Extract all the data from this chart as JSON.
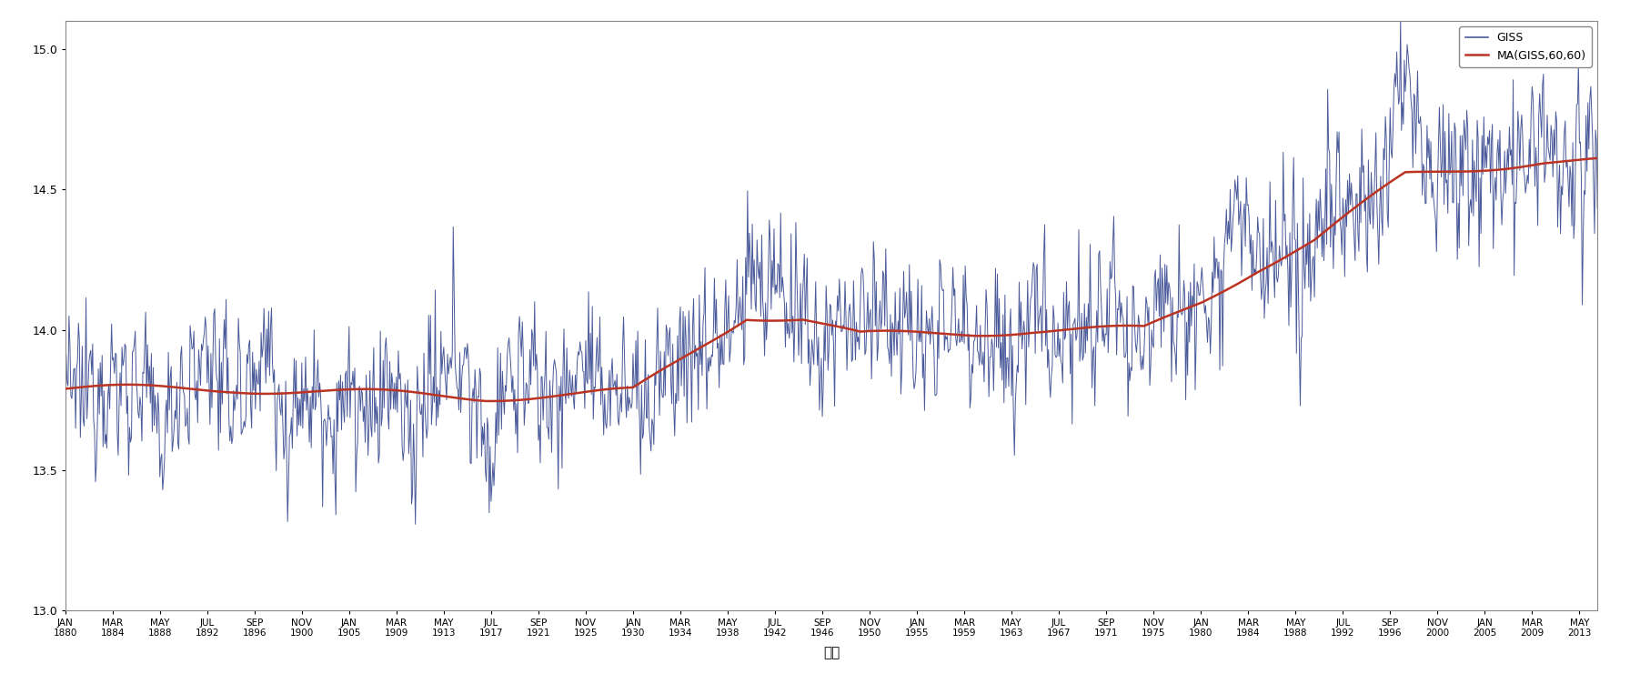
{
  "title": "",
  "xlabel": "날짜",
  "ylabel": "",
  "ylim": [
    13.0,
    15.1
  ],
  "xlim_start_year": 1880,
  "xlim_end_year": 2014,
  "line_color": "#4a5a9a",
  "ma_color": "#bb3322",
  "line_label": "GISS",
  "ma_label": "MA(GISS,60,60)",
  "background_color": "#ffffff",
  "yticks": [
    13.0,
    13.5,
    14.0,
    14.5,
    15.0
  ],
  "xtick_years": [
    1880,
    1884,
    1888,
    1892,
    1896,
    1900,
    1905,
    1909,
    1913,
    1917,
    1921,
    1925,
    1930,
    1934,
    1938,
    1942,
    1946,
    1950,
    1955,
    1959,
    1963,
    1967,
    1971,
    1975,
    1980,
    1984,
    1988,
    1992,
    1996,
    2000,
    2005,
    2009,
    2013
  ],
  "month_cycle": [
    "JAN",
    "MAR",
    "MAY",
    "JUL",
    "SEP",
    "NOV"
  ],
  "months_map": {
    "JAN": 0,
    "MAR": 2,
    "MAY": 4,
    "JUL": 6,
    "SEP": 8,
    "NOV": 10
  }
}
